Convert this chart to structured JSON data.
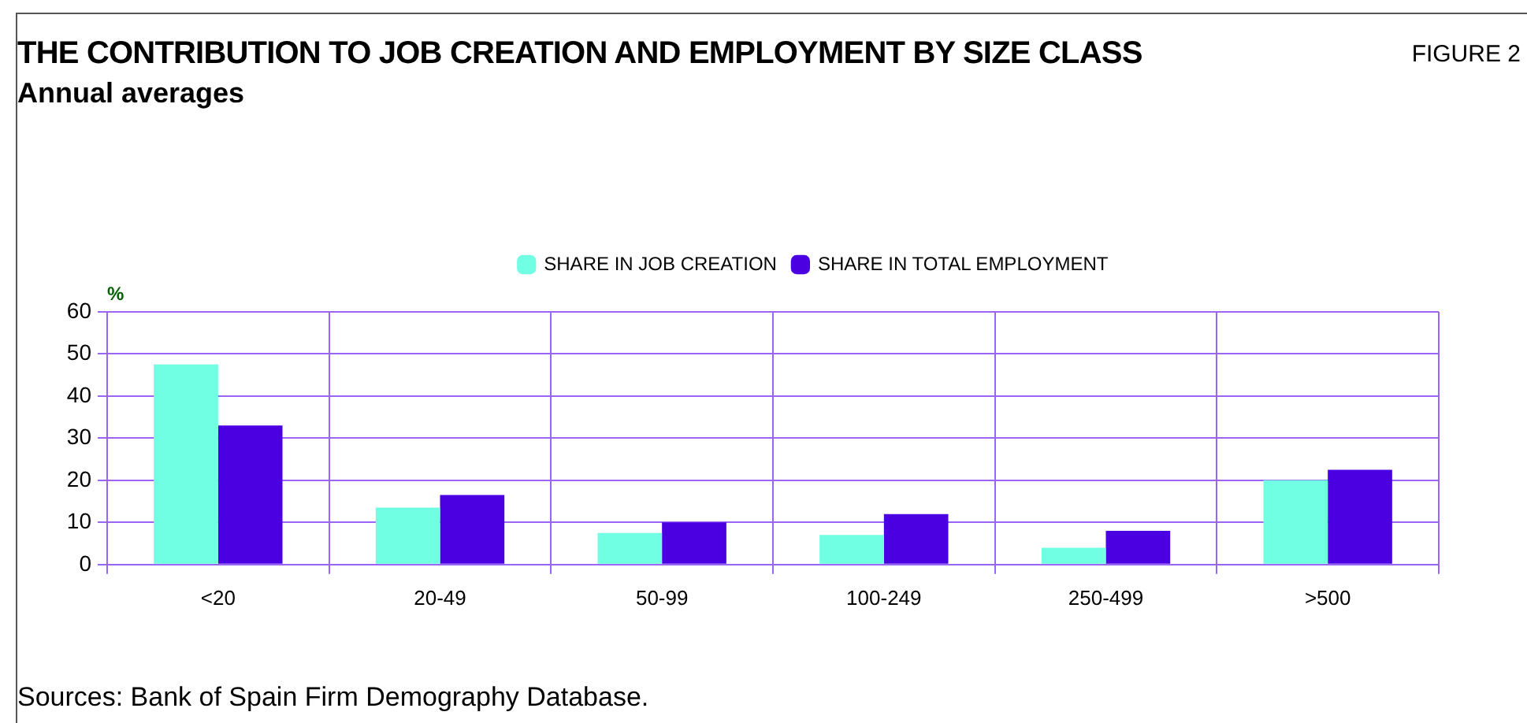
{
  "chart_data": {
    "type": "bar",
    "title": "THE CONTRIBUTION TO JOB CREATION AND EMPLOYMENT BY SIZE CLASS",
    "subtitle": "Annual averages",
    "ylabel": "%",
    "annotations": [
      "FIGURE 2",
      "Sources: Bank of Spain Firm Demography Database."
    ],
    "categories": [
      "<20",
      "20-49",
      "50-99",
      "100-249",
      "250-499",
      ">500"
    ],
    "series": [
      {
        "name": "SHARE IN JOB CREATION",
        "color": "#70ffe2",
        "values": [
          47.5,
          13.5,
          7.5,
          7,
          4,
          20
        ]
      },
      {
        "name": "SHARE IN TOTAL EMPLOYMENT",
        "color": "#4a00e0",
        "values": [
          33,
          16.5,
          10,
          12,
          8,
          22.5
        ]
      }
    ],
    "ylim": [
      0,
      60
    ],
    "yticks": [
      0,
      10,
      20,
      30,
      40,
      50,
      60
    ],
    "grid": true,
    "legend": "top"
  }
}
